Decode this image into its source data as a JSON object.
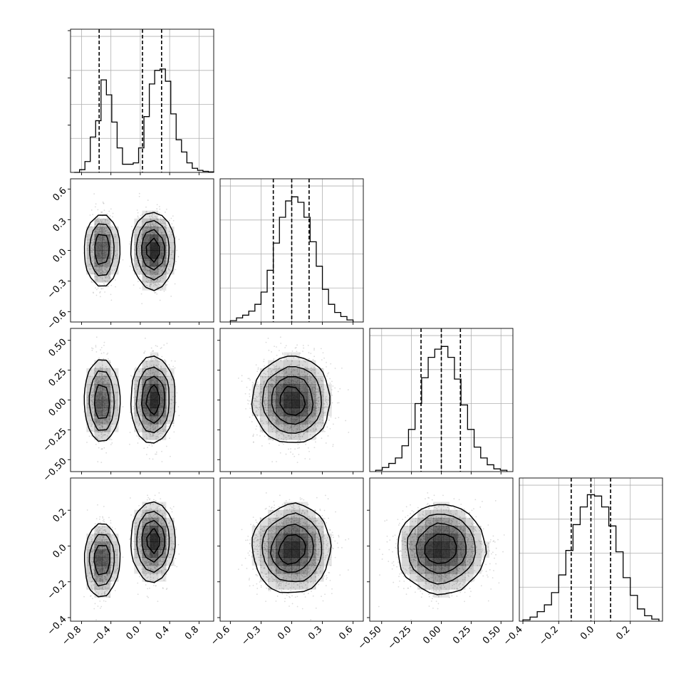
{
  "chart_data": {
    "type": "corner",
    "n_params": 4,
    "parameters": [
      {
        "range": [
          -0.95,
          1.0
        ],
        "ticks": [
          -0.8,
          -0.4,
          0.0,
          0.4,
          0.8
        ],
        "tick_labels": [
          "−0.8",
          "−0.4",
          "0.0",
          "0.4",
          "0.8"
        ],
        "quantiles": [
          -0.56,
          0.03,
          0.29
        ]
      },
      {
        "range": [
          -0.7,
          0.7
        ],
        "ticks": [
          -0.6,
          -0.3,
          0.0,
          0.3,
          0.6
        ],
        "tick_labels": [
          "−0.6",
          "−0.3",
          "0.0",
          "0.3",
          "0.6"
        ],
        "quantiles": [
          -0.18,
          0.0,
          0.17
        ]
      },
      {
        "range": [
          -0.6,
          0.6
        ],
        "ticks": [
          -0.5,
          -0.25,
          0.0,
          0.25,
          0.5
        ],
        "tick_labels": [
          "−0.50",
          "−0.25",
          "0.00",
          "0.25",
          "0.50"
        ],
        "quantiles": [
          -0.17,
          0.0,
          0.16
        ]
      },
      {
        "range": [
          -0.42,
          0.38
        ],
        "ticks": [
          -0.4,
          -0.2,
          0.0,
          0.2
        ],
        "tick_labels": [
          "−0.4",
          "−0.2",
          "0.0",
          "0.2"
        ],
        "quantiles": [
          -0.13,
          -0.02,
          0.09
        ]
      }
    ],
    "histograms": [
      {
        "edges_range": [
          -0.9,
          1.0
        ],
        "counts": [
          0.0,
          0.02,
          0.08,
          0.26,
          0.38,
          0.68,
          0.57,
          0.37,
          0.18,
          0.06,
          0.06,
          0.07,
          0.18,
          0.41,
          0.65,
          0.75,
          0.76,
          0.67,
          0.43,
          0.24,
          0.15,
          0.07,
          0.03,
          0.015,
          0.008,
          0.004
        ]
      },
      {
        "edges_range": [
          -0.6,
          0.6
        ],
        "counts": [
          0.01,
          0.03,
          0.05,
          0.08,
          0.13,
          0.22,
          0.38,
          0.58,
          0.77,
          0.89,
          0.92,
          0.88,
          0.77,
          0.59,
          0.41,
          0.24,
          0.13,
          0.07,
          0.04,
          0.015
        ]
      },
      {
        "edges_range": [
          -0.55,
          0.55
        ],
        "counts": [
          0.01,
          0.03,
          0.06,
          0.1,
          0.19,
          0.31,
          0.5,
          0.69,
          0.84,
          0.9,
          0.92,
          0.84,
          0.68,
          0.49,
          0.31,
          0.18,
          0.1,
          0.05,
          0.02,
          0.01
        ]
      },
      {
        "edges_range": [
          -0.4,
          0.36
        ],
        "counts": [
          0.01,
          0.03,
          0.07,
          0.12,
          0.21,
          0.34,
          0.52,
          0.71,
          0.84,
          0.93,
          0.92,
          0.84,
          0.7,
          0.51,
          0.32,
          0.19,
          0.09,
          0.04,
          0.015
        ]
      }
    ],
    "distributions": {
      "p0": {
        "mixture": [
          {
            "weight": 0.4,
            "mean": -0.52,
            "sd": 0.075
          },
          {
            "weight": 0.6,
            "mean": 0.17,
            "sd": 0.11
          }
        ]
      },
      "p1": {
        "mean": 0.0,
        "sd": 0.17
      },
      "p2": {
        "mean": 0.0,
        "sd": 0.17
      },
      "p3": {
        "mean": -0.02,
        "sd": 0.1,
        "mode_shift_by_p0_mode": [
          -0.06,
          0.04
        ]
      }
    },
    "contour_levels": 4,
    "grid": true,
    "colors": {
      "line": "#000000",
      "scatter": "#bdbdbd",
      "grid": "#b0b0b0",
      "density": "#000000"
    }
  }
}
